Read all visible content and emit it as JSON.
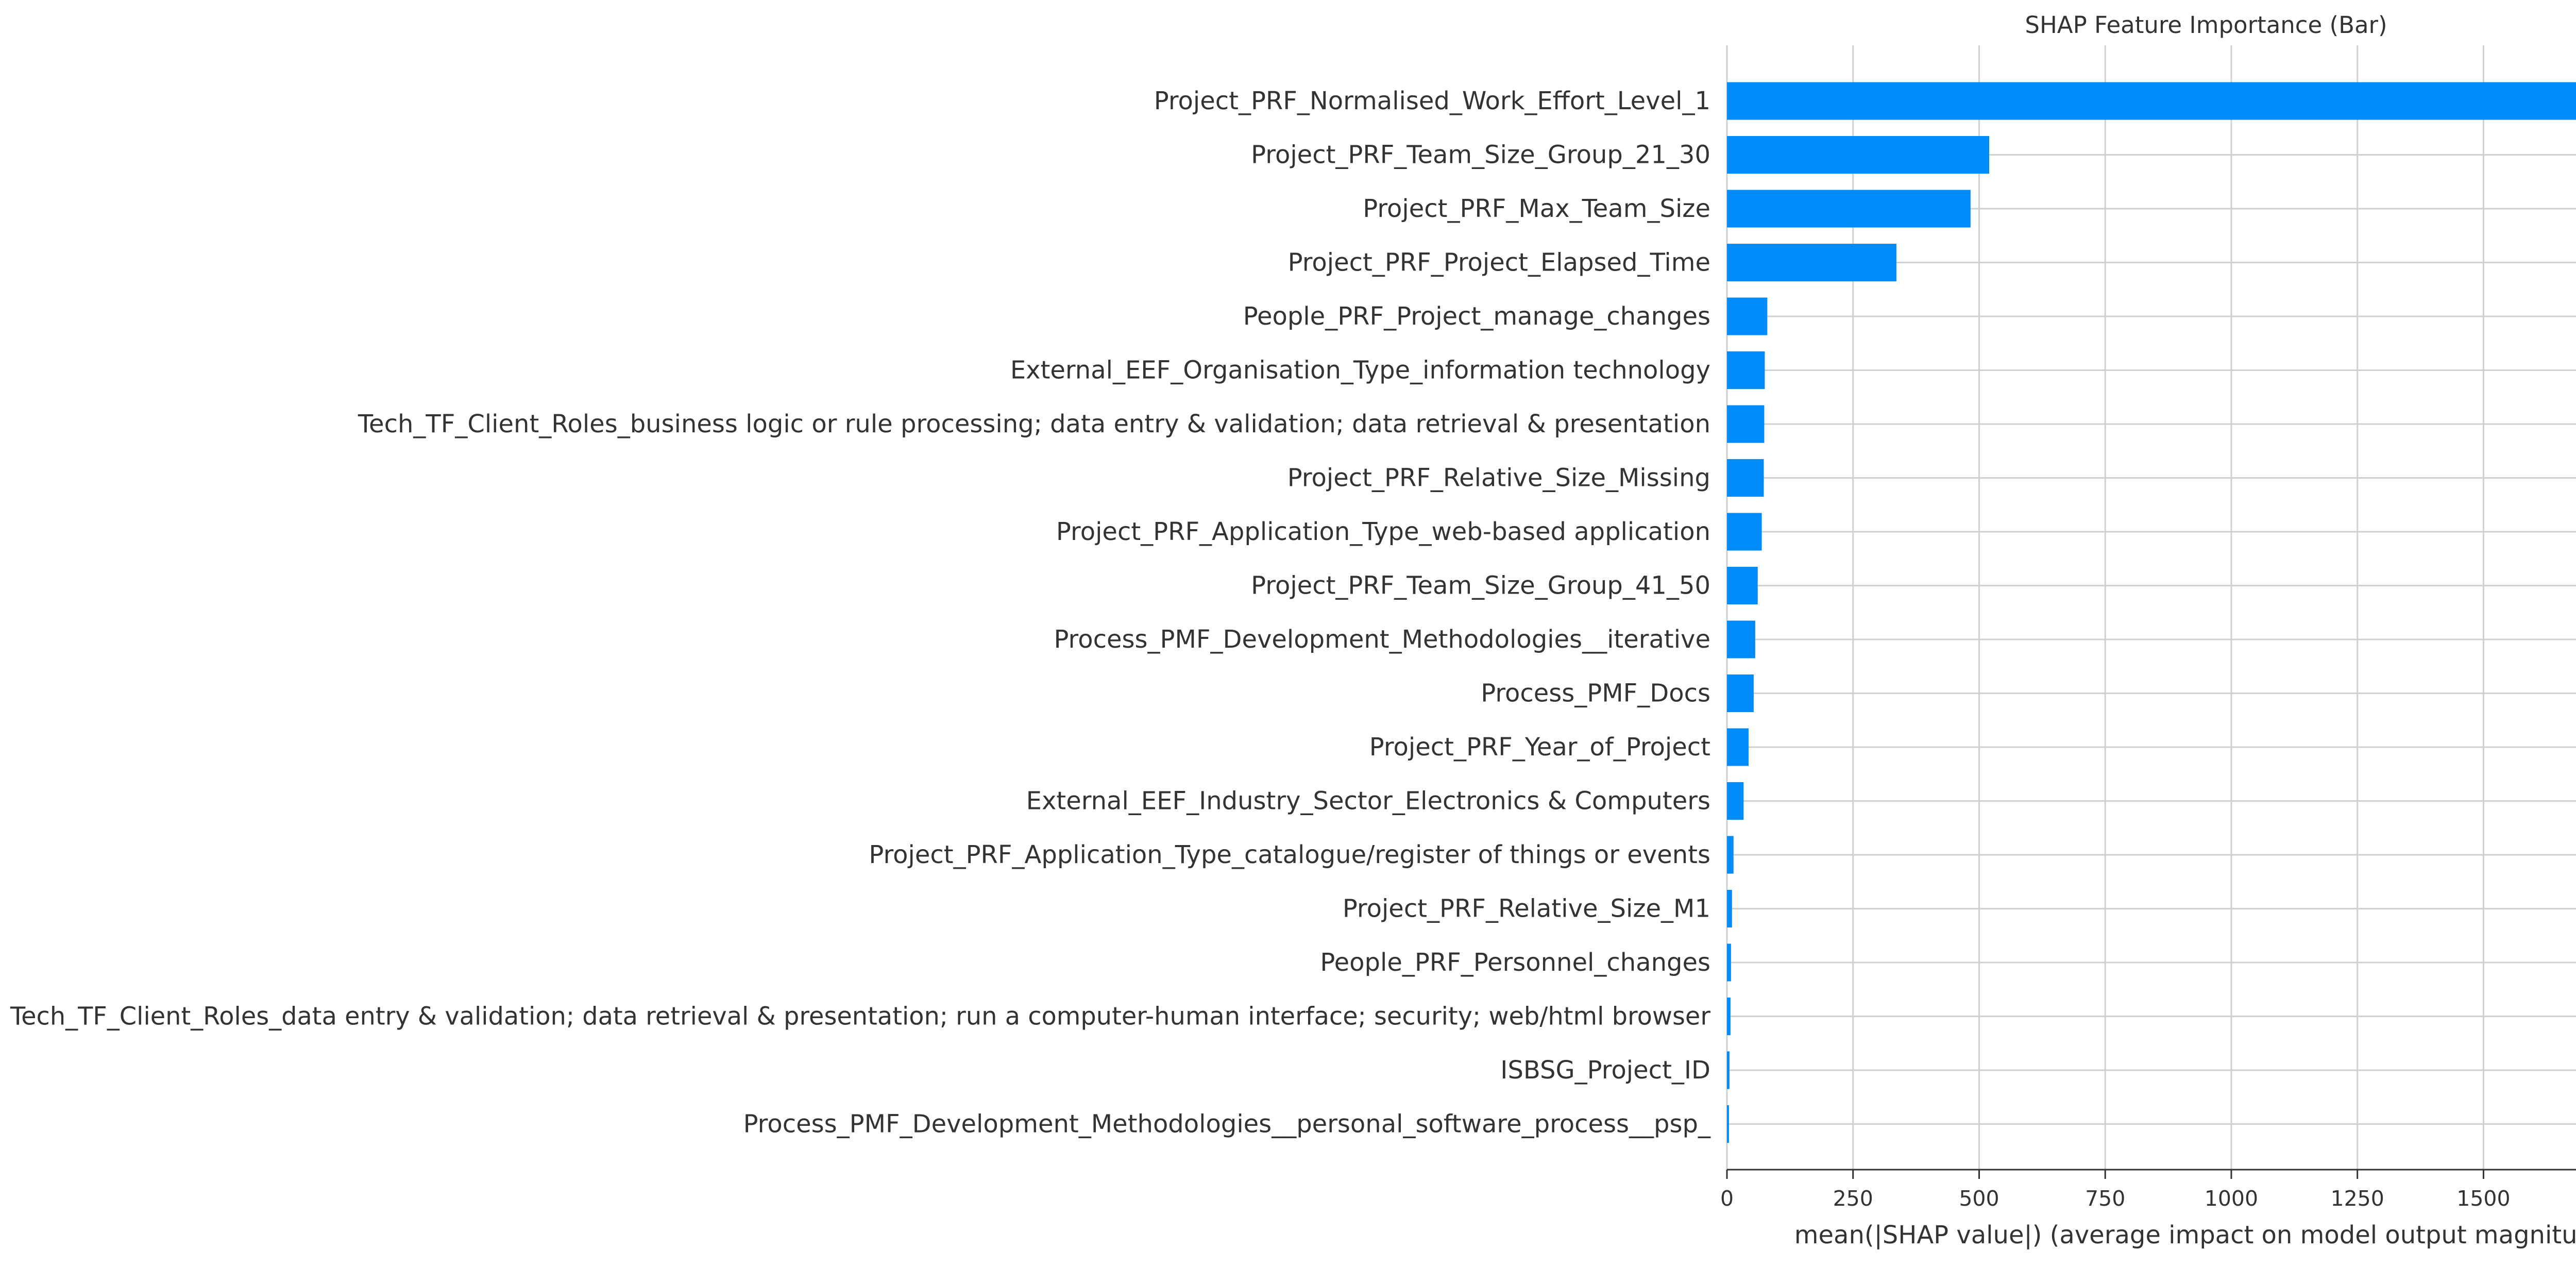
{
  "chart_data": {
    "type": "bar",
    "orientation": "horizontal",
    "title": "SHAP Feature Importance (Bar)",
    "xlabel": "mean(|SHAP value|) (average impact on model output magnitude)",
    "ylabel": "",
    "xlim": [
      0,
      1900
    ],
    "xticks": [
      0,
      250,
      500,
      750,
      1000,
      1250,
      1500,
      1750
    ],
    "grid": true,
    "bar_color": "#008bfb",
    "categories": [
      "Project_PRF_Normalised_Work_Effort_Level_1",
      "Project_PRF_Team_Size_Group_21_30",
      "Project_PRF_Max_Team_Size",
      "Project_PRF_Project_Elapsed_Time",
      "People_PRF_Project_manage_changes",
      "External_EEF_Organisation_Type_information technology",
      "Tech_TF_Client_Roles_business logic or rule processing; data entry & validation; data retrieval & presentation",
      "Project_PRF_Relative_Size_Missing",
      "Project_PRF_Application_Type_web-based application",
      "Project_PRF_Team_Size_Group_41_50",
      "Process_PMF_Development_Methodologies__iterative",
      "Process_PMF_Docs",
      "Project_PRF_Year_of_Project",
      "External_EEF_Industry_Sector_Electronics & Computers",
      "Project_PRF_Application_Type_catalogue/register of things or events",
      "Project_PRF_Relative_Size_M1",
      "People_PRF_Personnel_changes",
      "Tech_TF_Client_Roles_data entry & validation; data retrieval & presentation; run a computer-human interface; security; web/html browser",
      "ISBSG_Project_ID",
      "Process_PMF_Development_Methodologies__personal_software_process__psp_"
    ],
    "values": [
      1822,
      520,
      483,
      336,
      80,
      75,
      74,
      73,
      69,
      61,
      56,
      53,
      43,
      33,
      13,
      10,
      8,
      7,
      5,
      4
    ]
  }
}
